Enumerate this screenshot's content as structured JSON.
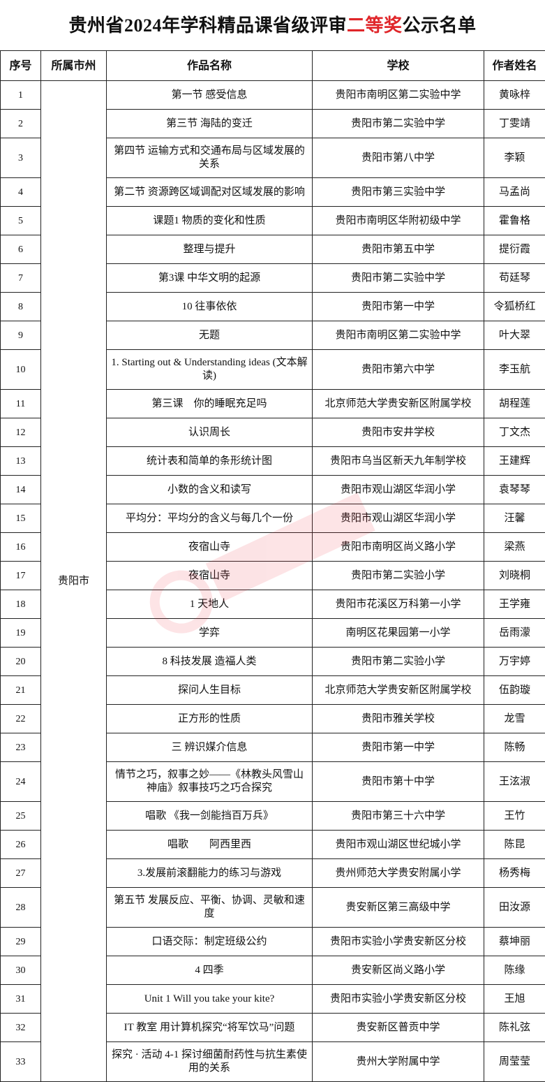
{
  "title": {
    "prefix": "贵州省2024年学科精品课省级评审",
    "highlight": "二等奖",
    "suffix": "公示名单",
    "highlight_color": "#e0262a"
  },
  "headers": [
    "序号",
    "所属市州",
    "作品名称",
    "学校",
    "作者姓名"
  ],
  "city": "贵阳市",
  "rows": [
    {
      "no": "1",
      "work": "第一节 感受信息",
      "school": "贵阳市南明区第二实验中学",
      "author": "黄咏梓"
    },
    {
      "no": "2",
      "work": "第三节 海陆的变迁",
      "school": "贵阳市第二实验中学",
      "author": "丁雯靖"
    },
    {
      "no": "3",
      "work": "第四节 运输方式和交通布局与区域发展的关系",
      "school": "贵阳市第八中学",
      "author": "李颖"
    },
    {
      "no": "4",
      "work": "第二节 资源跨区域调配对区域发展的影响",
      "school": "贵阳市第三实验中学",
      "author": "马孟尚"
    },
    {
      "no": "5",
      "work": "课题1 物质的变化和性质",
      "school": "贵阳市南明区华附初级中学",
      "author": "霍鲁格"
    },
    {
      "no": "6",
      "work": "整理与提升",
      "school": "贵阳市第五中学",
      "author": "提衍霞"
    },
    {
      "no": "7",
      "work": "第3课 中华文明的起源",
      "school": "贵阳市第二实验中学",
      "author": "苟廷琴"
    },
    {
      "no": "8",
      "work": "10 往事依依",
      "school": "贵阳市第一中学",
      "author": "令狐桥红"
    },
    {
      "no": "9",
      "work": "无题",
      "school": "贵阳市南明区第二实验中学",
      "author": "叶大翠"
    },
    {
      "no": "10",
      "work": "1. Starting out & Understanding ideas (文本解读)",
      "school": "贵阳市第六中学",
      "author": "李玉航"
    },
    {
      "no": "11",
      "work": "第三课　你的睡眠充足吗",
      "school": "北京师范大学贵安新区附属学校",
      "author": "胡程莲"
    },
    {
      "no": "12",
      "work": "认识周长",
      "school": "贵阳市安井学校",
      "author": "丁文杰"
    },
    {
      "no": "13",
      "work": "统计表和简单的条形统计图",
      "school": "贵阳市乌当区新天九年制学校",
      "author": "王建辉"
    },
    {
      "no": "14",
      "work": "小数的含义和读写",
      "school": "贵阳市观山湖区华润小学",
      "author": "袁琴琴"
    },
    {
      "no": "15",
      "work": "平均分：平均分的含义与每几个一份",
      "school": "贵阳市观山湖区华润小学",
      "author": "汪馨"
    },
    {
      "no": "16",
      "work": "夜宿山寺",
      "school": "贵阳市南明区尚义路小学",
      "author": "梁燕"
    },
    {
      "no": "17",
      "work": "夜宿山寺",
      "school": "贵阳市第二实验小学",
      "author": "刘晓桐"
    },
    {
      "no": "18",
      "work": "1 天地人",
      "school": "贵阳市花溪区万科第一小学",
      "author": "王学雍"
    },
    {
      "no": "19",
      "work": "学弈",
      "school": "南明区花果园第一小学",
      "author": "岳雨濛"
    },
    {
      "no": "20",
      "work": "8 科技发展 造福人类",
      "school": "贵阳市第二实验小学",
      "author": "万宇婷"
    },
    {
      "no": "21",
      "work": "探问人生目标",
      "school": "北京师范大学贵安新区附属学校",
      "author": "伍韵璇"
    },
    {
      "no": "22",
      "work": "正方形的性质",
      "school": "贵阳市雅关学校",
      "author": "龙雪"
    },
    {
      "no": "23",
      "work": "三 辨识媒介信息",
      "school": "贵阳市第一中学",
      "author": "陈畅"
    },
    {
      "no": "24",
      "work": "情节之巧，叙事之妙——《林教头风雪山神庙》叙事技巧之巧合探究",
      "school": "贵阳市第十中学",
      "author": "王泫淑"
    },
    {
      "no": "25",
      "work": "唱歌 《我一剑能挡百万兵》",
      "school": "贵阳市第三十六中学",
      "author": "王竹"
    },
    {
      "no": "26",
      "work": "唱歌　　阿西里西",
      "school": "贵阳市观山湖区世纪城小学",
      "author": "陈昆"
    },
    {
      "no": "27",
      "work": "3.发展前滚翻能力的练习与游戏",
      "school": "贵州师范大学贵安附属小学",
      "author": "杨秀梅"
    },
    {
      "no": "28",
      "work": "第五节 发展反应、平衡、协调、灵敏和速度",
      "school": "贵安新区第三高级中学",
      "author": "田汝源"
    },
    {
      "no": "29",
      "work": "口语交际：制定班级公约",
      "school": "贵阳市实验小学贵安新区分校",
      "author": "蔡坤丽"
    },
    {
      "no": "30",
      "work": "4 四季",
      "school": "贵安新区尚义路小学",
      "author": "陈缘"
    },
    {
      "no": "31",
      "work": "Unit 1 Will you take your kite?",
      "school": "贵阳市实验小学贵安新区分校",
      "author": "王旭"
    },
    {
      "no": "32",
      "work": "IT 教室 用计算机探究“将军饮马”问题",
      "school": "贵安新区普贡中学",
      "author": "陈礼弦"
    },
    {
      "no": "33",
      "work": "探究 · 活动 4-1 探讨细菌耐药性与抗生素使用的关系",
      "school": "贵州大学附属中学",
      "author": "周莹莹"
    }
  ]
}
